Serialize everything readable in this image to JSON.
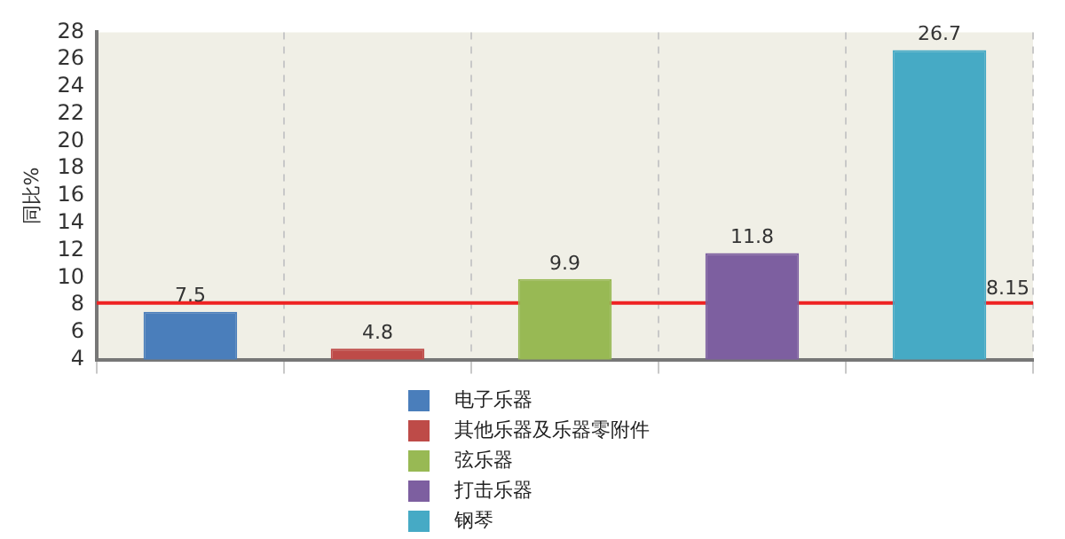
{
  "chart_data": {
    "type": "bar",
    "ylabel": "同比%",
    "categories": [
      null,
      null,
      null,
      null,
      null
    ],
    "series": [
      {
        "name": "电子乐器",
        "color": "#4a7ebb",
        "values": [
          7.5,
          null,
          null,
          null,
          null
        ]
      },
      {
        "name": "其他乐器及乐器零附件",
        "color": "#be4b48",
        "values": [
          null,
          4.8,
          null,
          null,
          null
        ]
      },
      {
        "name": "弦乐器",
        "color": "#98b954",
        "values": [
          null,
          null,
          9.9,
          null,
          null
        ]
      },
      {
        "name": "打击乐器",
        "color": "#7d5fa0",
        "values": [
          null,
          null,
          null,
          11.8,
          null
        ]
      },
      {
        "name": "钢琴",
        "color": "#46aac5",
        "values": [
          null,
          null,
          null,
          null,
          26.7
        ]
      }
    ],
    "ylim": [
      4,
      28
    ],
    "yticks": [
      4,
      6,
      8,
      10,
      12,
      14,
      16,
      18,
      20,
      22,
      24,
      26,
      28
    ],
    "ref_lines": [
      {
        "axis": "y",
        "value": 8.15,
        "label": "8.15",
        "color": "#ee2222"
      }
    ],
    "data_labels": true,
    "grid": "x",
    "legend": "bottom",
    "tick_labels": "y"
  }
}
